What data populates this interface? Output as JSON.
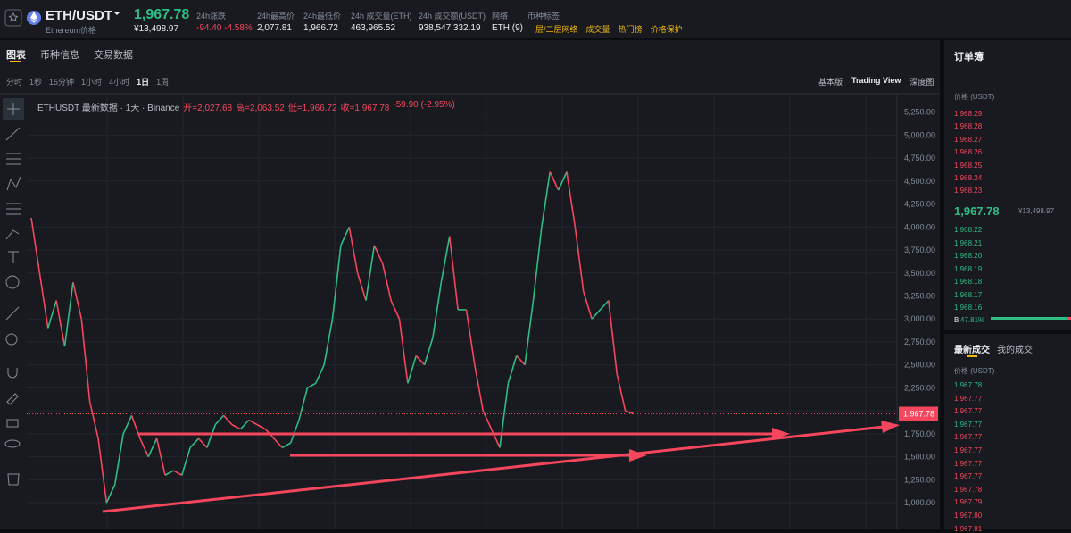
{
  "header": {
    "symbol": "ETH/USDT",
    "name": "Ethereum价格",
    "price": "1,967.78",
    "price_cny": "¥13,498.97",
    "stats": [
      {
        "label": "24h涨跌",
        "value": "-94.40 -4.58%",
        "tone": "down"
      },
      {
        "label": "24h最高价",
        "value": "2,077.81",
        "tone": "plain"
      },
      {
        "label": "24h最低价",
        "value": "1,966.72",
        "tone": "plain"
      },
      {
        "label": "24h 成交量(ETH)",
        "value": "463,965.52",
        "tone": "plain"
      },
      {
        "label": "24h 成交额(USDT)",
        "value": "938,547,332.19",
        "tone": "plain"
      },
      {
        "label": "网络",
        "value": "ETH (9)",
        "tone": "plain"
      }
    ],
    "tags_label": "币种标签",
    "tags": [
      "一层/二层网络",
      "成交量",
      "热门榜",
      "价格保护"
    ]
  },
  "tabs": [
    "图表",
    "币种信息",
    "交易数据"
  ],
  "active_tab": 0,
  "intervals": [
    "分时",
    "1秒",
    "15分钟",
    "1小时",
    "4小时",
    "1日",
    "1周"
  ],
  "active_interval": 5,
  "views": [
    "基本版",
    "Trading View",
    "深度图"
  ],
  "active_view": 1,
  "chart_data": {
    "type": "line",
    "legend": [
      "ETHUSDT 最新数据 · 1天 · Binance",
      "开=2,027.68",
      "高=2,063.52",
      "低=1,966.72",
      "收=1,967.78",
      "-59.90 (-2.95%)"
    ],
    "values": [
      4100,
      3500,
      2900,
      3200,
      2700,
      3400,
      3000,
      2100,
      1700,
      1000,
      1200,
      1750,
      1950,
      1700,
      1500,
      1700,
      1300,
      1350,
      1300,
      1600,
      1700,
      1600,
      1850,
      1950,
      1850,
      1800,
      1900,
      1850,
      1800,
      1700,
      1600,
      1650,
      1900,
      2250,
      2300,
      2500,
      3000,
      3800,
      4000,
      3500,
      3200,
      3800,
      3600,
      3200,
      3000,
      2300,
      2600,
      2500,
      2800,
      3400,
      3900,
      3100,
      3100,
      2500,
      2000,
      1800,
      1600,
      2300,
      2600,
      2500,
      3200,
      4000,
      4600,
      4400,
      4600,
      4000,
      3300,
      3000,
      3100,
      3200,
      2400,
      2000,
      1967.78
    ],
    "up_color": "#2ebd85",
    "down_color": "#f6465d",
    "ylim": [
      710,
      5450
    ],
    "yticks": [
      {
        "value": 1000,
        "label": "1,000.00"
      },
      {
        "value": 1250,
        "label": "1,250.00"
      },
      {
        "value": 1500,
        "label": "1,500.00"
      },
      {
        "value": 1750,
        "label": "1,750.00"
      },
      {
        "value": 2000,
        "label": "2,000.00"
      },
      {
        "value": 2250,
        "label": "2,250.00"
      },
      {
        "value": 2500,
        "label": "2,500.00"
      },
      {
        "value": 2750,
        "label": "2,750.00"
      },
      {
        "value": 3000,
        "label": "3,000.00"
      },
      {
        "value": 3250,
        "label": "3,250.00"
      },
      {
        "value": 3500,
        "label": "3,500.00"
      },
      {
        "value": 3750,
        "label": "3,750.00"
      },
      {
        "value": 4000,
        "label": "4,000.00"
      },
      {
        "value": 4250,
        "label": "4,250.00"
      },
      {
        "value": 4500,
        "label": "4,500.00"
      },
      {
        "value": 4750,
        "label": "4,750.00"
      },
      {
        "value": 5000,
        "label": "5,000.00"
      },
      {
        "value": 5250,
        "label": "5,250.00"
      }
    ],
    "last_price": {
      "value": 1967.78,
      "label": "1,967.78"
    }
  },
  "order_book": {
    "title": "订单簿",
    "price_header": "价格 (USDT)",
    "asks": [
      "1,968.29",
      "1,968.28",
      "1,968.27",
      "1,968.26",
      "1,968.25",
      "1,968.24",
      "1,968.23"
    ],
    "mid_price": "1,967.78",
    "mid_cny": "¥13,498.97",
    "bids": [
      "1,968.22",
      "1,968.21",
      "1,968.20",
      "1,968.19",
      "1,968.18",
      "1,968.17",
      "1,968.16"
    ],
    "buy_label": "B",
    "buy_ratio": "47.81%"
  },
  "trades": {
    "tabs": [
      "最新成交",
      "我的成交"
    ],
    "price_header": "价格 (USDT)",
    "rows": [
      {
        "price": "1,967.78",
        "side": "buy"
      },
      {
        "price": "1,967.77",
        "side": "sell"
      },
      {
        "price": "1,967.77",
        "side": "sell"
      },
      {
        "price": "1,967.77",
        "side": "buy"
      },
      {
        "price": "1,967.77",
        "side": "sell"
      },
      {
        "price": "1,967.77",
        "side": "sell"
      },
      {
        "price": "1,967.77",
        "side": "sell"
      },
      {
        "price": "1,967.77",
        "side": "sell"
      },
      {
        "price": "1,967.78",
        "side": "sell"
      },
      {
        "price": "1,967.79",
        "side": "sell"
      },
      {
        "price": "1,967.80",
        "side": "sell"
      },
      {
        "price": "1,967.81",
        "side": "sell"
      }
    ]
  }
}
